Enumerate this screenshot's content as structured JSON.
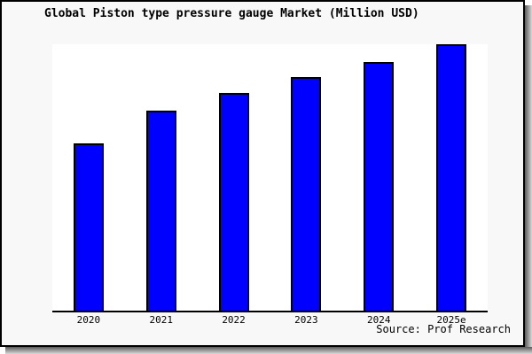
{
  "window": {
    "background": "#f8f8f8",
    "panel_background": "#ffffff",
    "frame_border_color": "#000000"
  },
  "chart_data": {
    "type": "bar",
    "title": "Global Piston type pressure gauge Market (Million USD)",
    "categories": [
      "2020",
      "2021",
      "2022",
      "2023",
      "2024",
      "2025e"
    ],
    "values": [
      62.8,
      75.2,
      81.6,
      87.7,
      93.5,
      100
    ],
    "xlabel": "",
    "ylabel": "",
    "ylim": [
      0,
      100
    ],
    "grid": false,
    "legend": false,
    "y_axis_labels_visible": false,
    "bar_color": "#0000ff",
    "bar_border_color": "#000000"
  },
  "footer": {
    "source": "Source: Prof Research"
  }
}
